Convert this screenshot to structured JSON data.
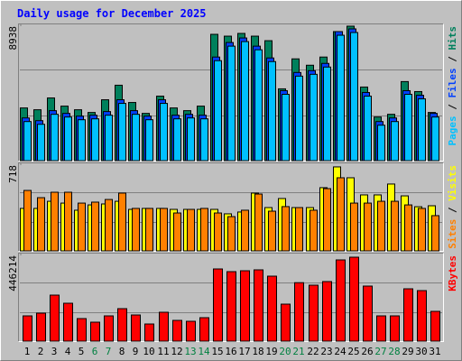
{
  "chart_data": {
    "type": "bar",
    "title": "Daily usage for December 2025",
    "categories": [
      "1",
      "2",
      "3",
      "4",
      "5",
      "6",
      "7",
      "8",
      "9",
      "10",
      "11",
      "12",
      "13",
      "14",
      "15",
      "16",
      "17",
      "18",
      "19",
      "20",
      "21",
      "22",
      "23",
      "24",
      "25",
      "26",
      "27",
      "28",
      "29",
      "30",
      "31"
    ],
    "category_colors": [
      "#000000",
      "#000000",
      "#000000",
      "#000000",
      "#000000",
      "#008040",
      "#008040",
      "#000000",
      "#000000",
      "#000000",
      "#000000",
      "#000000",
      "#008040",
      "#008040",
      "#000000",
      "#000000",
      "#000000",
      "#000000",
      "#000000",
      "#008040",
      "#008040",
      "#000000",
      "#000000",
      "#000000",
      "#000000",
      "#000000",
      "#008040",
      "#008040",
      "#000000",
      "#000000",
      "#000000"
    ],
    "panels": [
      {
        "ylim": [
          0,
          8938
        ],
        "yticks": [
          8938
        ],
        "series": [
          {
            "name": "Hits",
            "color": "#00805C",
            "values": [
              3480,
              3360,
              4140,
              3600,
              3360,
              3180,
              4020,
              4980,
              3840,
              3120,
              4260,
              3480,
              3300,
              3600,
              8340,
              8220,
              8400,
              8220,
              7920,
              4740,
              6720,
              6300,
              6840,
              8520,
              8880,
              4860,
              2880,
              3060,
              5220,
              4560,
              3180
            ]
          },
          {
            "name": "Files",
            "color": "#0040FF",
            "values": [
              2820,
              2640,
              3300,
              3120,
              2940,
              3000,
              3240,
              4020,
              3300,
              2940,
              4020,
              3000,
              3060,
              3000,
              6840,
              7800,
              8100,
              7560,
              6780,
              4620,
              5820,
              5940,
              6420,
              8520,
              8700,
              4500,
              2580,
              2820,
              4620,
              4320,
              3120
            ]
          },
          {
            "name": "Pages",
            "color": "#00C0FF",
            "values": [
              2580,
              2400,
              3060,
              2880,
              2700,
              2760,
              3000,
              3780,
              3060,
              2700,
              3780,
              2760,
              2820,
              2760,
              6600,
              7560,
              7860,
              7320,
              6540,
              4380,
              5580,
              5700,
              6180,
              8280,
              8460,
              4260,
              2340,
              2580,
              4380,
              4080,
              2880
            ]
          }
        ]
      },
      {
        "ylim": [
          0,
          718
        ],
        "yticks": [
          718
        ],
        "series": [
          {
            "name": "Visits",
            "color": "#FFFF00",
            "values": [
              352,
              352,
              411,
              396,
              337,
              381,
              389,
              411,
              344,
              352,
              352,
              344,
              344,
              344,
              344,
              307,
              322,
              479,
              359,
              434,
              359,
              359,
              524,
              696,
              606,
              464,
              464,
              554,
              456,
              366,
              374
            ]
          },
          {
            "name": "Sites",
            "color": "#FF8000",
            "values": [
              501,
              441,
              486,
              486,
              396,
              404,
              426,
              479,
              352,
              352,
              352,
              314,
              344,
              352,
              314,
              284,
              337,
              471,
              329,
              367,
              359,
              337,
              516,
              606,
              396,
              396,
              411,
              411,
              381,
              352,
              292
            ]
          }
        ]
      },
      {
        "ylim": [
          0,
          446214
        ],
        "yticks": [
          446214
        ],
        "series": [
          {
            "name": "KBytes",
            "color": "#FF0000",
            "values": [
              130144,
              144088,
              237048,
              195216,
              116200,
              97608,
              130144,
              167328,
              134792,
              88312,
              148736,
              106904,
              102256,
              120848,
              371840,
              357896,
              362544,
              367192,
              334656,
              190568,
              301120,
              288176,
              306768,
              418320,
              432264,
              283528,
              130144,
              130144,
              269584,
              260288,
              153384
            ]
          }
        ]
      }
    ]
  }
}
